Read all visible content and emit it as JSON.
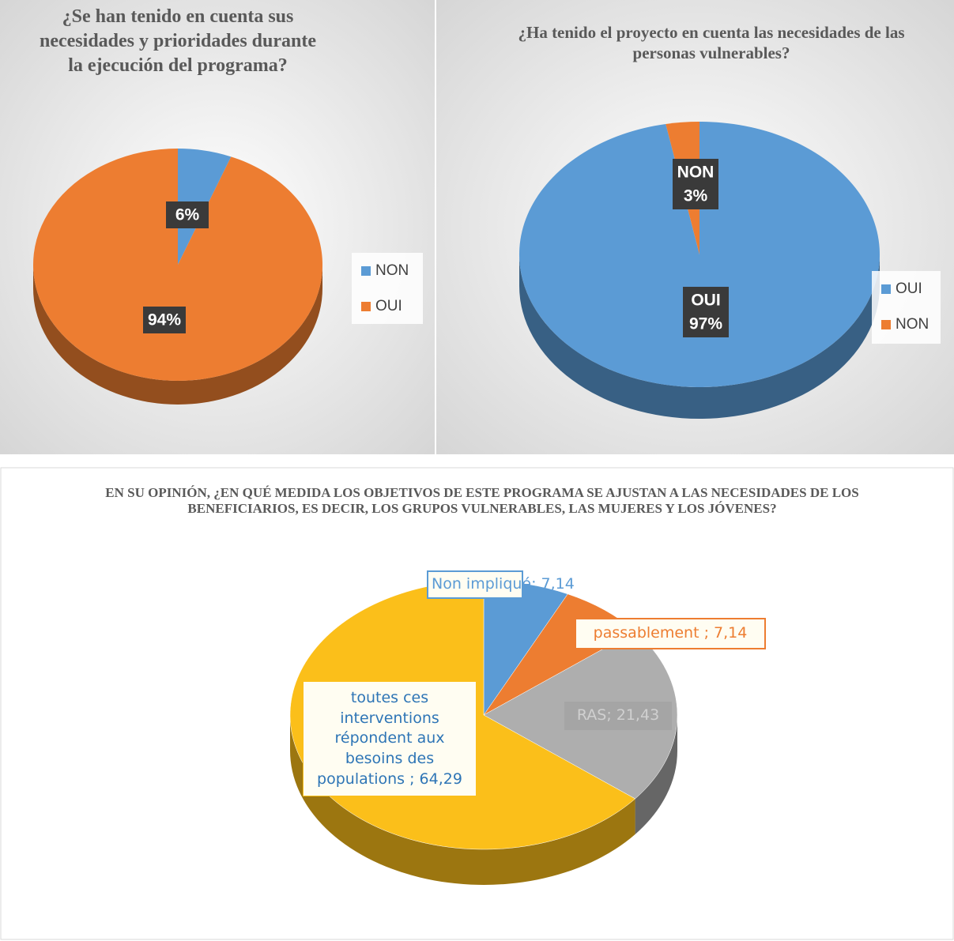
{
  "chart_data": [
    {
      "type": "pie",
      "title": "¿Se han tenido en cuenta sus necesidades y prioridades durante la ejecución del programa?",
      "categories": [
        "NON",
        "OUI"
      ],
      "values": [
        6,
        94
      ],
      "value_labels": [
        "6%",
        "94%"
      ],
      "colors": [
        "#5b9bd5",
        "#ed7d31"
      ],
      "legend": "right"
    },
    {
      "type": "pie",
      "title": "¿Ha tenido el proyecto en cuenta las necesidades de las personas vulnerables?",
      "categories": [
        "OUI",
        "NON"
      ],
      "values": [
        97,
        3
      ],
      "value_labels": [
        "97%",
        "3%"
      ],
      "colors": [
        "#5b9bd5",
        "#ed7d31"
      ],
      "legend": "right"
    },
    {
      "type": "pie",
      "title": "EN SU OPINIÓN, ¿EN QUÉ MEDIDA LOS OBJETIVOS DE ESTE PROGRAMA SE AJUSTAN A LAS NECESIDADES DE LOS BENEFICIARIOS, ES DECIR, LOS GRUPOS VULNERABLES, LAS MUJERES Y LOS JÓVENES?",
      "values": [
        7.14,
        7.14,
        21.43,
        64.29
      ],
      "value_labels": [
        "Non impliqué; 7,14",
        "passablement ; 7,14",
        "RAS; 21,43",
        "toutes ces interventions répondent aux besoins des populations ; 64,29"
      ],
      "colors": [
        "#5b9bd5",
        "#ed7d31",
        "#a5a5a5",
        "#fbbf1a"
      ]
    }
  ]
}
